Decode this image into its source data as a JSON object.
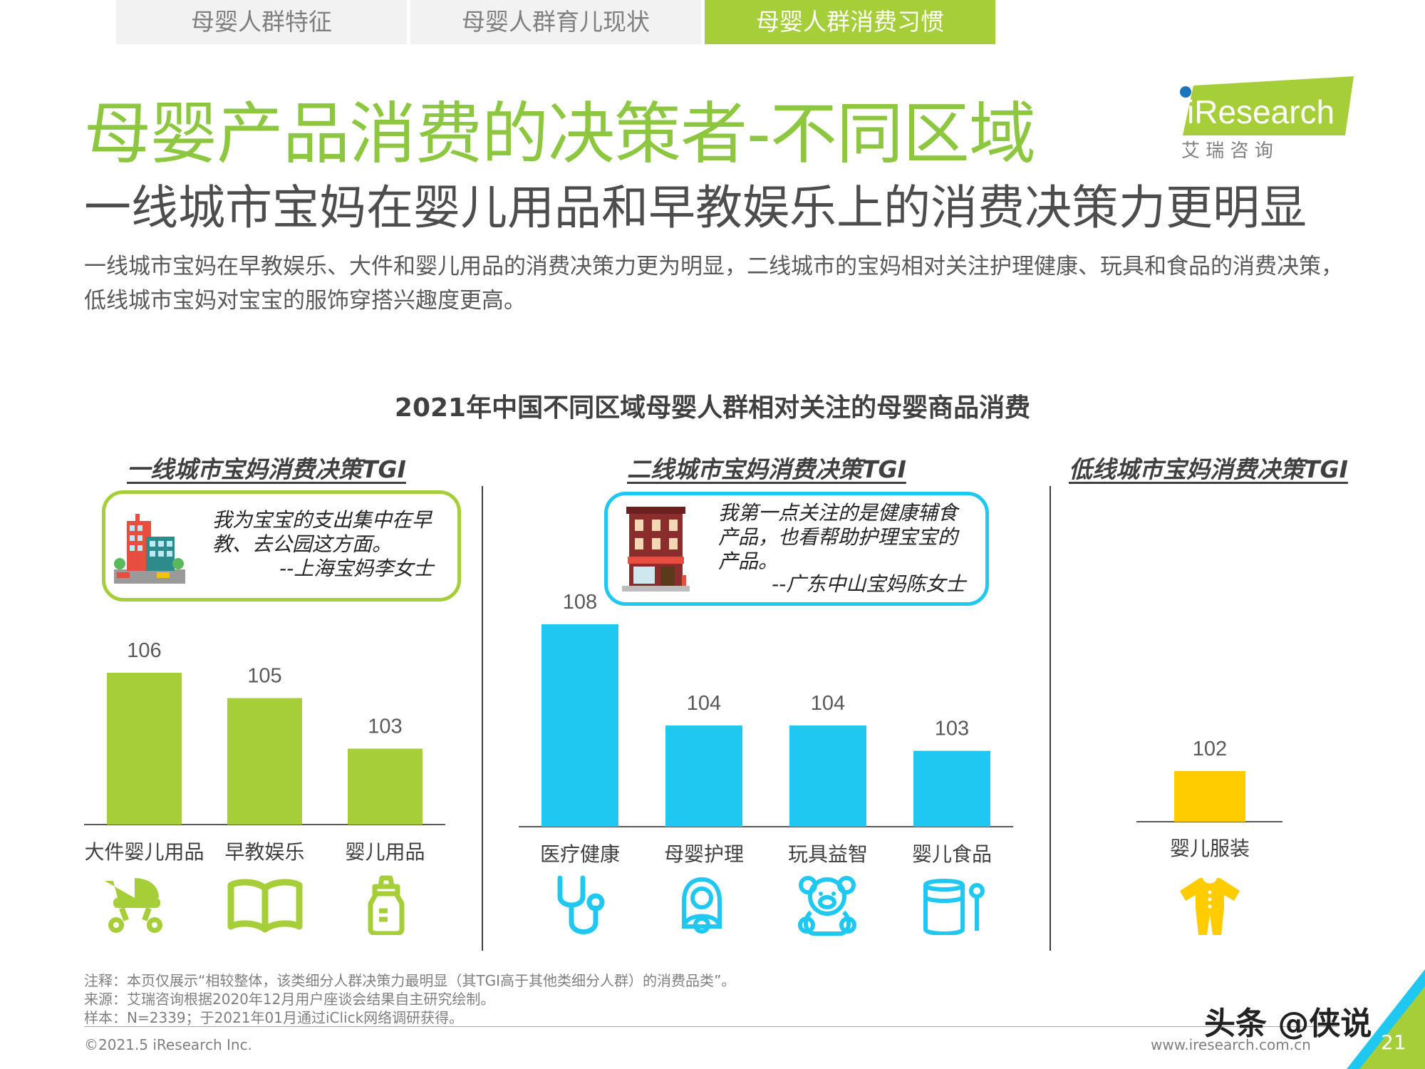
{
  "tabs": [
    {
      "label": "母婴人群特征",
      "active": false
    },
    {
      "label": "母婴人群育儿现状",
      "active": false
    },
    {
      "label": "母婴人群消费习惯",
      "active": true
    }
  ],
  "header": {
    "title": "母婴产品消费的决策者-不同区域",
    "subtitle": "一线城市宝妈在婴儿用品和早教娱乐上的消费决策力更明显",
    "description": "一线城市宝妈在早教娱乐、大件和婴儿用品的消费决策力更为明显，二线城市的宝妈相对关注护理健康、玩具和食品的消费决策，低线城市宝妈对宝宝的服饰穿搭兴趣度更高。"
  },
  "logo": {
    "text": "iResearch",
    "cn": "艾 瑞 咨 询"
  },
  "colors": {
    "green": "#a6ce39",
    "blue": "#1ec8f0",
    "yellow": "#ffcc00",
    "title_green": "#8dc63f"
  },
  "chart_data": [
    {
      "type": "bar",
      "title": "2021年中国不同区域母婴人群相对关注的母婴商品消费",
      "panel": "一线城市宝妈消费决策TGI",
      "categories": [
        "大件婴儿用品",
        "早教娱乐",
        "婴儿用品"
      ],
      "values": [
        106,
        105,
        103
      ],
      "color": "#a6ce39",
      "icons": [
        "stroller-icon",
        "book-icon",
        "baby-bottle-icon"
      ]
    },
    {
      "type": "bar",
      "panel": "二线城市宝妈消费决策TGI",
      "categories": [
        "医疗健康",
        "母婴护理",
        "玩具益智",
        "婴儿食品"
      ],
      "values": [
        108,
        104,
        104,
        103
      ],
      "color": "#1ec8f0",
      "icons": [
        "stethoscope-icon",
        "mother-baby-icon",
        "teddy-bear-icon",
        "formula-can-icon"
      ]
    },
    {
      "type": "bar",
      "panel": "低线城市宝妈消费决策TGI",
      "categories": [
        "婴儿服装"
      ],
      "values": [
        102
      ],
      "color": "#ffcc00",
      "icons": [
        "baby-clothes-icon"
      ]
    }
  ],
  "quotes": [
    {
      "text1": "我为宝宝的支出集中在早",
      "text2": "教、去公园这方面。",
      "author": "--上海宝妈李女士"
    },
    {
      "text1": "我第一点关注的是健康辅食",
      "text2": "产品，也看帮助护理宝宝的",
      "text3": "产品。",
      "author": "--广东中山宝妈陈女士"
    }
  ],
  "notes": [
    "注释：本页仅展示“相较整体，该类细分人群决策力最明显（其TGI高于其他类细分人群）的消费品类”。",
    "来源：艾瑞咨询根据2020年12月用户座谈会结果自主研究绘制。",
    "样本：N=2339；于2021年01月通过iClick网络调研获得。"
  ],
  "footer": {
    "copyright": "©2021.5 iResearch Inc.",
    "url": "www.iresearch.com.cn",
    "page": "21",
    "watermark": "头条 @侠说"
  }
}
